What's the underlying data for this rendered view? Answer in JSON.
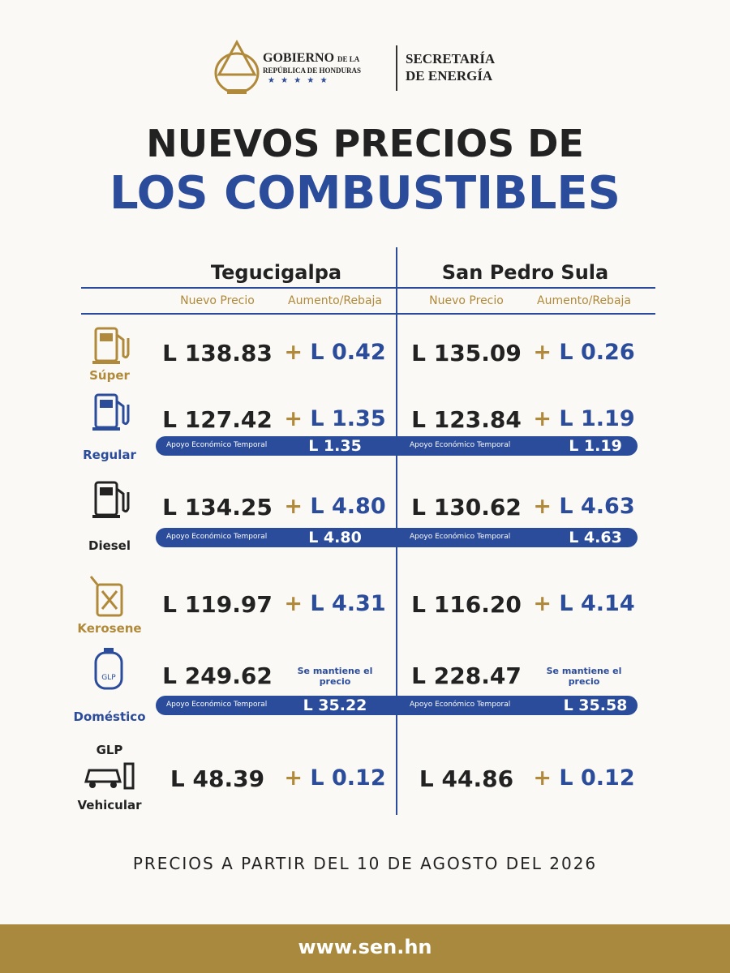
{
  "header": {
    "gov_name": "GOBIERNO",
    "gov_suffix": "DE LA",
    "gov_sub": "REPÚBLICA DE HONDURAS",
    "stars": "★ ★ ★ ★ ★",
    "secretaria": "SECRETARÍA",
    "energia": "DE ENERGÍA"
  },
  "title": {
    "line1": "NUEVOS PRECIOS DE",
    "line2": "LOS COMBUSTIBLES"
  },
  "cities": [
    "Tegucigalpa",
    "San Pedro Sula"
  ],
  "col_headers": [
    "Nuevo Precio",
    "Aumento/Rebaja"
  ],
  "rows": [
    {
      "label": "Súper",
      "color": "#b08a3a",
      "icon": "pump",
      "cells": [
        {
          "price": "L 138.83",
          "sign": "+",
          "change": "L 0.42"
        },
        {
          "price": "L 135.09",
          "sign": "+",
          "change": "L 0.26"
        }
      ]
    },
    {
      "label": "Regular",
      "color": "#2b4c9b",
      "icon": "pump",
      "cells": [
        {
          "price": "L 127.42",
          "sign": "+",
          "change": "L 1.35"
        },
        {
          "price": "L 123.84",
          "sign": "+",
          "change": "L 1.19"
        }
      ],
      "apoyo": [
        {
          "label": "Apoyo Económico Temporal",
          "value": "L 1.35"
        },
        {
          "label": "Apoyo Económico Temporal",
          "value": "L 1.19"
        }
      ]
    },
    {
      "label": "Diesel",
      "color": "#222222",
      "icon": "pump",
      "cells": [
        {
          "price": "L 134.25",
          "sign": "+",
          "change": "L 4.80"
        },
        {
          "price": "L 130.62",
          "sign": "+",
          "change": "L 4.63"
        }
      ],
      "apoyo": [
        {
          "label": "Apoyo Económico Temporal",
          "value": "L 4.80"
        },
        {
          "label": "Apoyo Económico Temporal",
          "value": "L 4.63"
        }
      ]
    },
    {
      "label": "Kerosene",
      "color": "#b08a3a",
      "icon": "can",
      "cells": [
        {
          "price": "L 119.97",
          "sign": "+",
          "change": "L 4.31"
        },
        {
          "price": "L 116.20",
          "sign": "+",
          "change": "L 4.14"
        }
      ]
    },
    {
      "label": "Doméstico",
      "color": "#2b4c9b",
      "icon": "cylinder",
      "icon_text": "GLP",
      "cells": [
        {
          "price": "L 249.62",
          "note": "Se mantiene el precio"
        },
        {
          "price": "L 228.47",
          "note": "Se mantiene el precio"
        }
      ],
      "apoyo": [
        {
          "label": "Apoyo Económico Temporal",
          "value": "L 35.22"
        },
        {
          "label": "Apoyo Económico Temporal",
          "value": "L 35.58"
        }
      ]
    },
    {
      "label": "Vehicular",
      "label_top": "GLP",
      "color": "#222222",
      "icon": "car",
      "cells": [
        {
          "price": "L 48.39",
          "sign": "+",
          "change": "L 0.12"
        },
        {
          "price": "L 44.86",
          "sign": "+",
          "change": "L 0.12"
        }
      ]
    }
  ],
  "footer": {
    "date": "PRECIOS A PARTIR DEL 10 DE AGOSTO DEL 2026",
    "website": "www.sen.hn"
  }
}
